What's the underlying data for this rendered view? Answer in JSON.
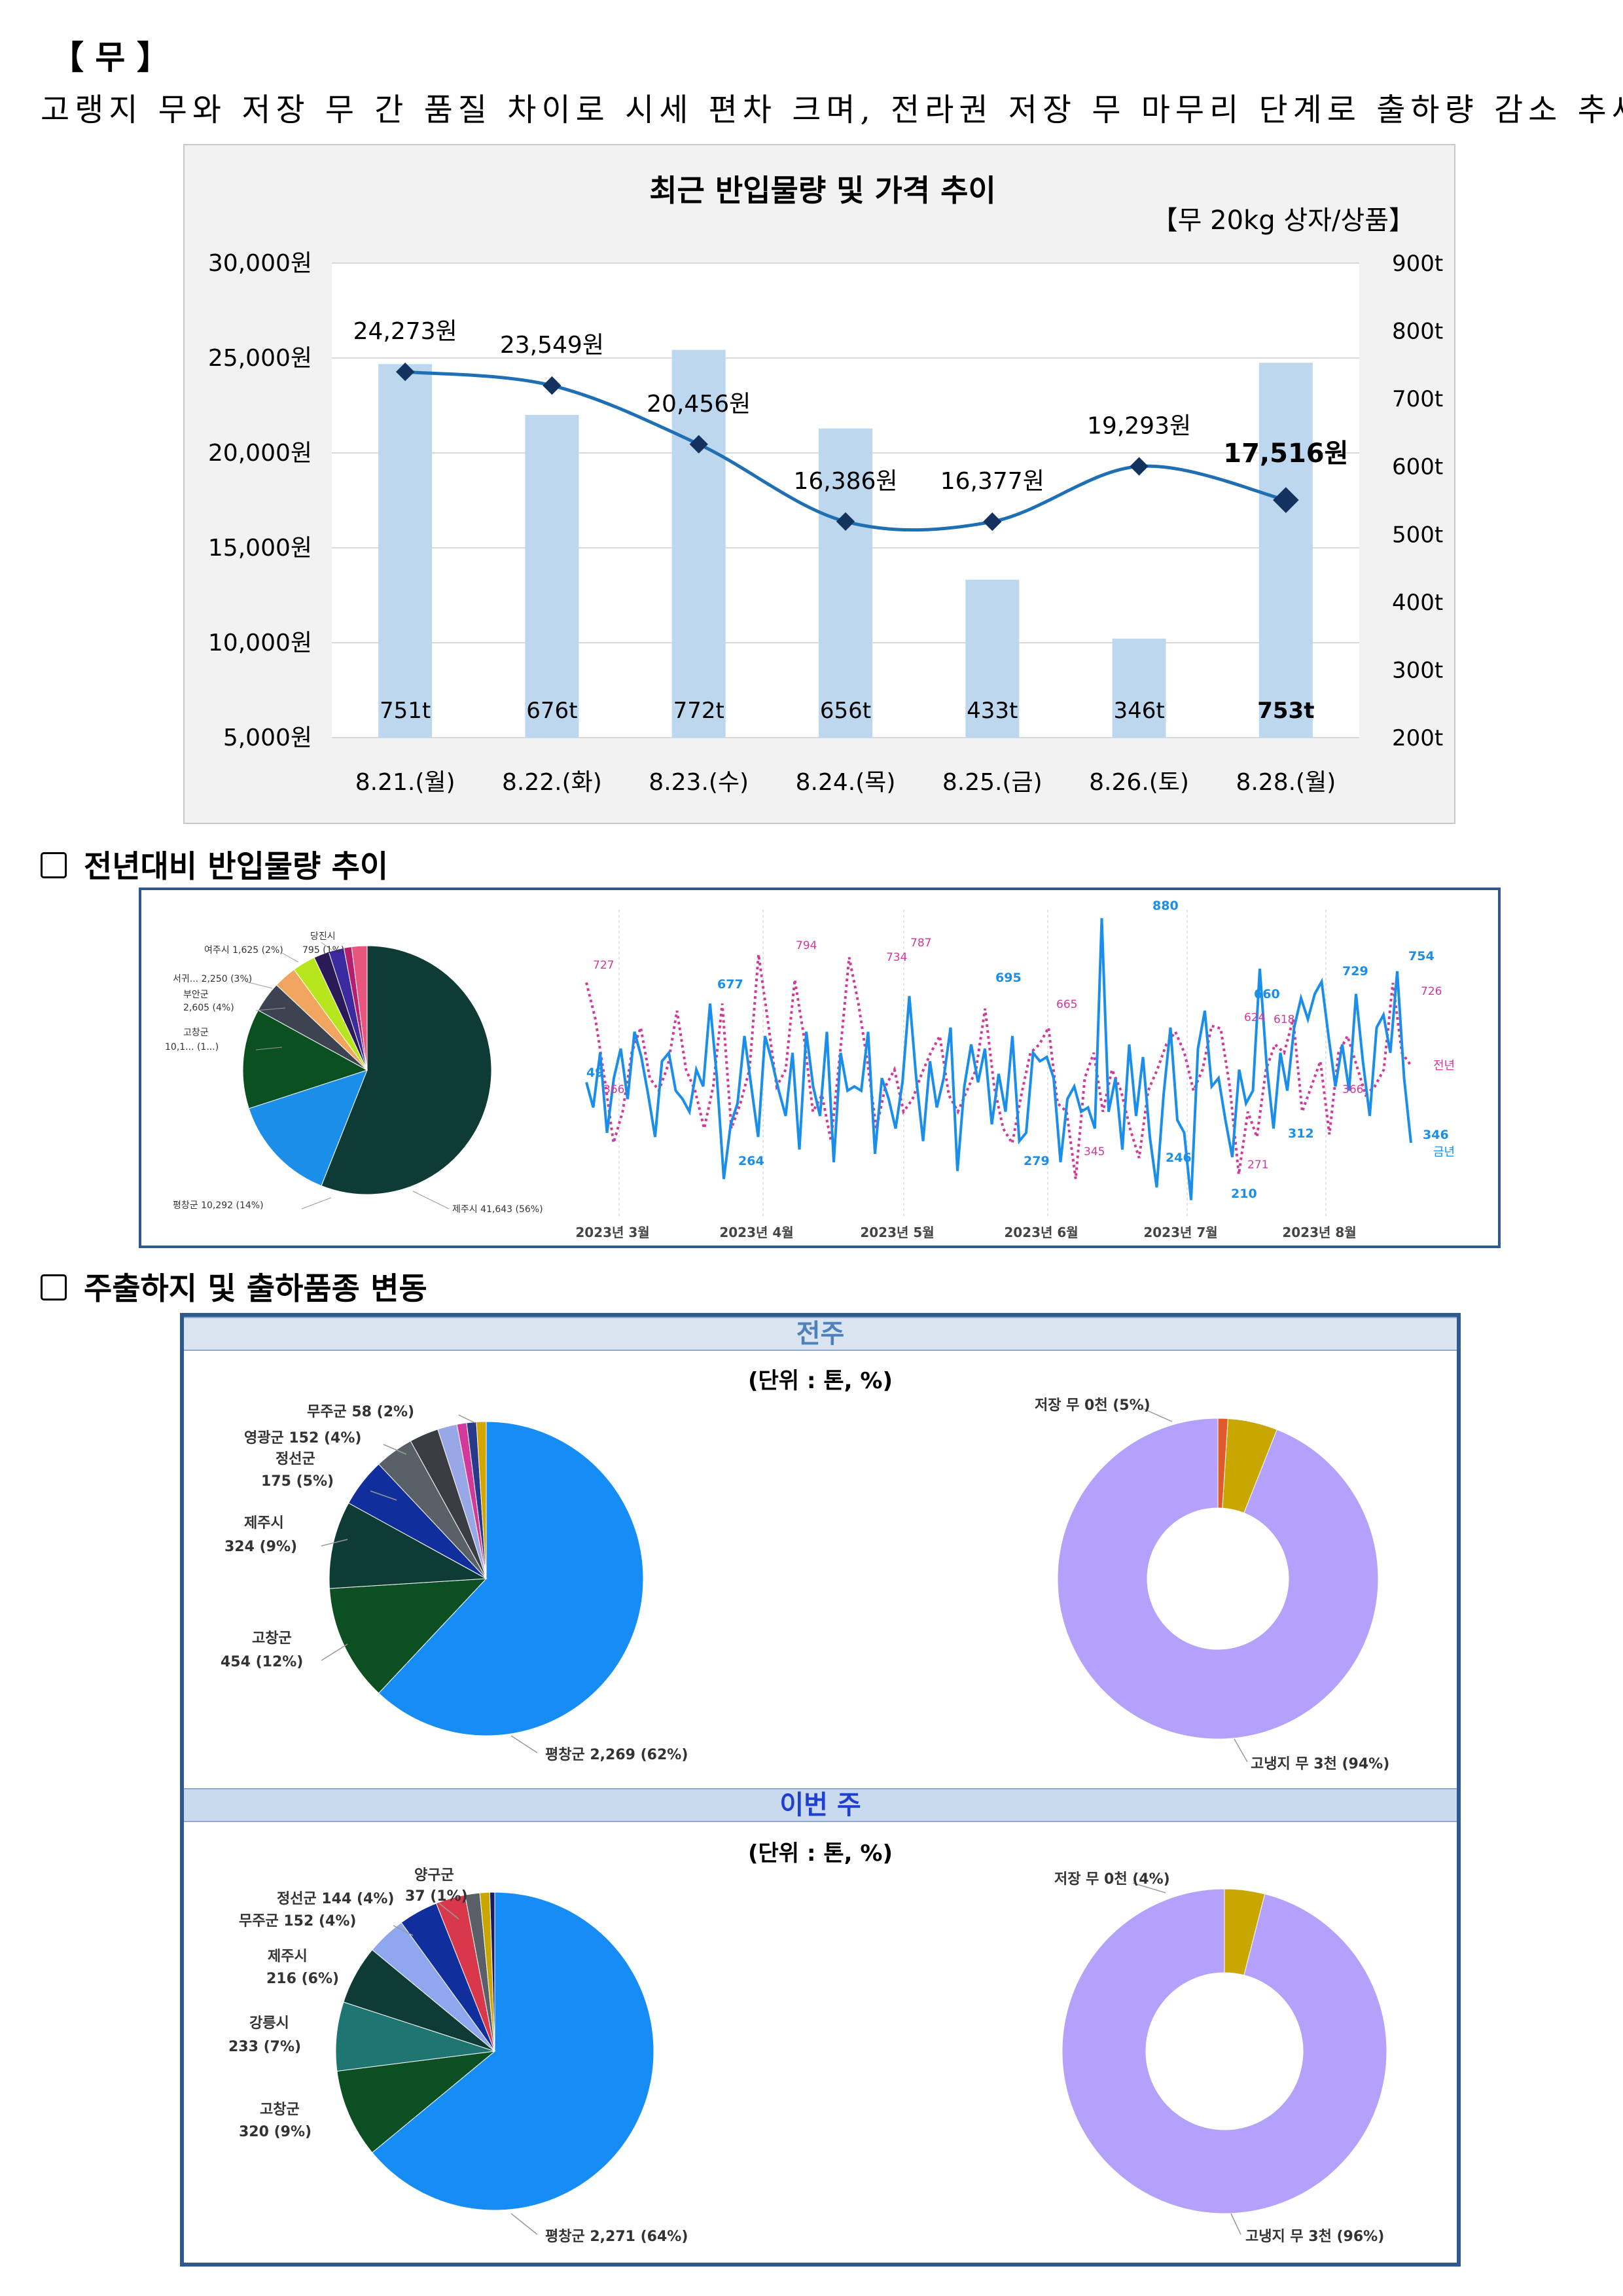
{
  "section_title": "【 무 】",
  "summary": "고랭지 무와 저장 무 간 품질 차이로 시세 편차 크며, 전라권 저장 무 마무리 단계로 출하량 감소 추세",
  "chart_data": [
    {
      "type": "bar",
      "title": "최근 반입물량 및 가격 추이",
      "subtitle": "【무 20kg 상자/상품】",
      "categories": [
        "8.21.(월)",
        "8.22.(화)",
        "8.23.(수)",
        "8.24.(목)",
        "8.25.(금)",
        "8.26.(토)",
        "8.28.(월)"
      ],
      "series": [
        {
          "type": "bar",
          "axis": "right",
          "values": [
            751,
            676,
            772,
            656,
            433,
            346,
            753
          ],
          "labels": [
            "751t",
            "676t",
            "772t",
            "656t",
            "433t",
            "346t",
            "753t"
          ],
          "color": "#bdd7ee"
        },
        {
          "type": "line",
          "axis": "left",
          "values": [
            24273,
            23549,
            20456,
            16386,
            16377,
            19293,
            17516
          ],
          "labels": [
            "24,273원",
            "23,549원",
            "20,456원",
            "16,386원",
            "16,377원",
            "19,293원",
            "17,516원"
          ],
          "color": "#1f6fb5"
        }
      ],
      "ylim_left": [
        5000,
        30000
      ],
      "ylim_right": [
        200,
        900
      ],
      "left_ticks": [
        "30,000원",
        "25,000원",
        "20,000원",
        "15,000원",
        "10,000원",
        "5,000원"
      ],
      "right_ticks": [
        "900t",
        "800t",
        "700t",
        "600t",
        "500t",
        "400t",
        "300t",
        "200t"
      ],
      "grid": true
    },
    {
      "type": "pie",
      "slices": [
        {
          "label": "제주시 41,643 (56%)",
          "value": 56,
          "color": "#0e3b36"
        },
        {
          "label": "평창군 10,292 (14%)",
          "value": 14,
          "color": "#1a8ee8"
        },
        {
          "label": "고창군 10,1... (1...)",
          "value": 13,
          "color": "#0b5020"
        },
        {
          "label": "부안군 2,605 (4%)",
          "value": 4,
          "color": "#3d4350"
        },
        {
          "label": "서귀... 2,250 (3%)",
          "value": 3,
          "color": "#f2a55e"
        },
        {
          "label": "",
          "value": 3,
          "color": "#b8e61e"
        },
        {
          "label": "여주시 1,625 (2%)",
          "value": 2,
          "color": "#2a1b58"
        },
        {
          "label": "",
          "value": 2,
          "color": "#3b2aa0"
        },
        {
          "label": "당진시 795 (1%)",
          "value": 1,
          "color": "#b4206f"
        },
        {
          "label": "",
          "value": 2,
          "color": "#e8567e"
        }
      ]
    },
    {
      "type": "line",
      "x_labels": [
        "2023년 3월",
        "2023년 4월",
        "2023년 5월",
        "2023년 6월",
        "2023년 7월",
        "2023년 8월"
      ],
      "series": [
        {
          "name": "금년",
          "color": "#1a8ee8",
          "values": [
            490,
            430,
            560,
            370,
            500,
            570,
            450,
            610,
            550,
            460,
            360,
            540,
            560,
            470,
            450,
            420,
            520,
            480,
            677,
            500,
            260,
            390,
            440,
            600,
            480,
            360,
            600,
            540,
            470,
            410,
            560,
            330,
            610,
            480,
            410,
            610,
            300,
            560,
            470,
            480,
            470,
            610,
            320,
            500,
            450,
            380,
            490,
            695,
            500,
            350,
            540,
            430,
            500,
            620,
            279,
            480,
            580,
            490,
            570,
            390,
            510,
            420,
            600,
            350,
            370,
            560,
            540,
            550,
            500,
            300,
            450,
            480,
            420,
            430,
            380,
            880,
            420,
            500,
            330,
            580,
            410,
            550,
            360,
            240,
            460,
            620,
            400,
            370,
            210,
            570,
            660,
            480,
            500,
            400,
            312,
            520,
            440,
            470,
            760,
            530,
            380,
            560,
            470,
            620,
            690,
            640,
            700,
            729,
            600,
            480,
            580,
            470,
            700,
            540,
            410,
            620,
            650,
            560,
            754,
            500,
            346
          ]
        },
        {
          "name": "전년",
          "color": "#d13a9a",
          "values": [
            727,
            640,
            500,
            346,
            420,
            560,
            620,
            500,
            470,
            530,
            660,
            520,
            470,
            380,
            480,
            677,
            380,
            440,
            520,
            794,
            640,
            480,
            520,
            734,
            600,
            420,
            460,
            350,
            560,
            787,
            680,
            540,
            380,
            480,
            520,
            420,
            450,
            510,
            560,
            600,
            460,
            420,
            470,
            520,
            665,
            480,
            380,
            345,
            460,
            560,
            580,
            620,
            440,
            420,
            260,
            500,
            560,
            420,
            520,
            470,
            380,
            310,
            470,
            520,
            580,
            610,
            560,
            470,
            520,
            624,
            618,
            480,
            271,
            420,
            360,
            520,
            580,
            560,
            640,
            420,
            480,
            540,
            366,
            560,
            600,
            530,
            460,
            480,
            520,
            726,
            560,
            530
          ]
        }
      ],
      "point_labels_blue": [
        "49",
        "677",
        "264",
        "695",
        "279",
        "880",
        "246",
        "210",
        "660",
        "312",
        "729",
        "754",
        "346",
        "금년"
      ],
      "point_labels_pink": [
        "727",
        "366",
        "794",
        "346",
        "734",
        "787",
        "665",
        "345",
        "624",
        "618",
        "271",
        "366",
        "726",
        "전년"
      ]
    },
    {
      "type": "pie",
      "name": "전주",
      "slices": [
        {
          "label": "평창군 2,269 (62%)",
          "value": 62,
          "color": "#168cf5"
        },
        {
          "label": "고창군 454 (12%)",
          "value": 12,
          "color": "#0b4f22"
        },
        {
          "label": "제주시 324 (9%)",
          "value": 9,
          "color": "#0e3b36"
        },
        {
          "label": "정선군 175 (5%)",
          "value": 5,
          "color": "#102f9c"
        },
        {
          "label": "영광군 152 (4%)",
          "value": 4,
          "color": "#5a6068"
        },
        {
          "label": "",
          "value": 3,
          "color": "#3b3d45"
        },
        {
          "label": "무주군 58 (2%)",
          "value": 2,
          "color": "#98a8e6"
        },
        {
          "label": "",
          "value": 1,
          "color": "#d13a9a"
        },
        {
          "label": "",
          "value": 1,
          "color": "#2a3a8a"
        },
        {
          "label": "",
          "value": 1,
          "color": "#d4a600"
        }
      ]
    },
    {
      "type": "pie",
      "name": "전주",
      "slices": [
        {
          "label": "고냉지 무 3천 (94%)",
          "value": 94,
          "color": "#b3a1fb"
        },
        {
          "label": "저장 무 0천 (5%)",
          "value": 5,
          "color": "#c9a600"
        },
        {
          "label": "",
          "value": 1,
          "color": "#e05a2a"
        }
      ]
    },
    {
      "type": "pie",
      "name": "이번 주",
      "slices": [
        {
          "label": "평창군 2,271 (64%)",
          "value": 64,
          "color": "#168cf5"
        },
        {
          "label": "고창군 320 (9%)",
          "value": 9,
          "color": "#0b4f22"
        },
        {
          "label": "강릉시 233 (7%)",
          "value": 7,
          "color": "#1e7572"
        },
        {
          "label": "제주시 216 (6%)",
          "value": 6,
          "color": "#0e3b36"
        },
        {
          "label": "무주군 152 (4%)",
          "value": 4,
          "color": "#8fa7ef"
        },
        {
          "label": "정선군 144 (4%)",
          "value": 4,
          "color": "#102f9c"
        },
        {
          "label": "",
          "value": 3,
          "color": "#d8384a"
        },
        {
          "label": "",
          "value": 1.5,
          "color": "#5a6068"
        },
        {
          "label": "양구군 37 (1%)",
          "value": 1,
          "color": "#c9a600"
        },
        {
          "label": "",
          "value": 0.5,
          "color": "#1a1a6a"
        }
      ]
    },
    {
      "type": "pie",
      "name": "이번 주",
      "slices": [
        {
          "label": "고냉지 무 3천 (96%)",
          "value": 96,
          "color": "#b3a1fb"
        },
        {
          "label": "저장 무 0천 (4%)",
          "value": 4,
          "color": "#c9a600"
        }
      ]
    }
  ],
  "sub1_title": "전년대비  반입물량  추이",
  "sub2_title": "주출하지  및  출하품종  변동",
  "pie_label_stack": {
    "danjin_line1": "당진시",
    "danjin_line2": "795 (1%)",
    "yeoju": "여주시 1,625 (2%)",
    "seogwi": "서귀... 2,250 (3%)",
    "buan_line1": "부안군",
    "buan_line2": "2,605 (4%)",
    "gochang_line1": "고창군",
    "gochang_line2": "10,1... (1...)"
  },
  "prev_week": {
    "band": "전주",
    "unit": "(단위 : 톤, %)",
    "pie_labels": {
      "muju": "무주군 58 (2%)",
      "yeonggwang": "영광군 152 (4%)",
      "jeongseon_1": "정선군",
      "jeongseon_2": "175 (5%)",
      "jeju_1": "제주시",
      "jeju_2": "324 (9%)",
      "gochang_1": "고창군",
      "gochang_2": "454 (12%)"
    }
  },
  "this_week": {
    "band": "이번 주",
    "unit": "(단위 : 톤, %)",
    "pie_labels": {
      "yanggu_1": "양구군",
      "yanggu_2": "37 (1%)",
      "jeongseon": "정선군 144 (4%)",
      "muju": "무주군 152 (4%)",
      "jeju_1": "제주시",
      "jeju_2": "216 (6%)",
      "gangneung_1": "강릉시",
      "gangneung_2": "233 (7%)",
      "gochang_1": "고창군",
      "gochang_2": "320 (9%)"
    }
  },
  "colors": {
    "band_text_prev": "#4f81bd",
    "band_text_this": "#1f3fd0",
    "panel_border": "#2e5a91"
  }
}
